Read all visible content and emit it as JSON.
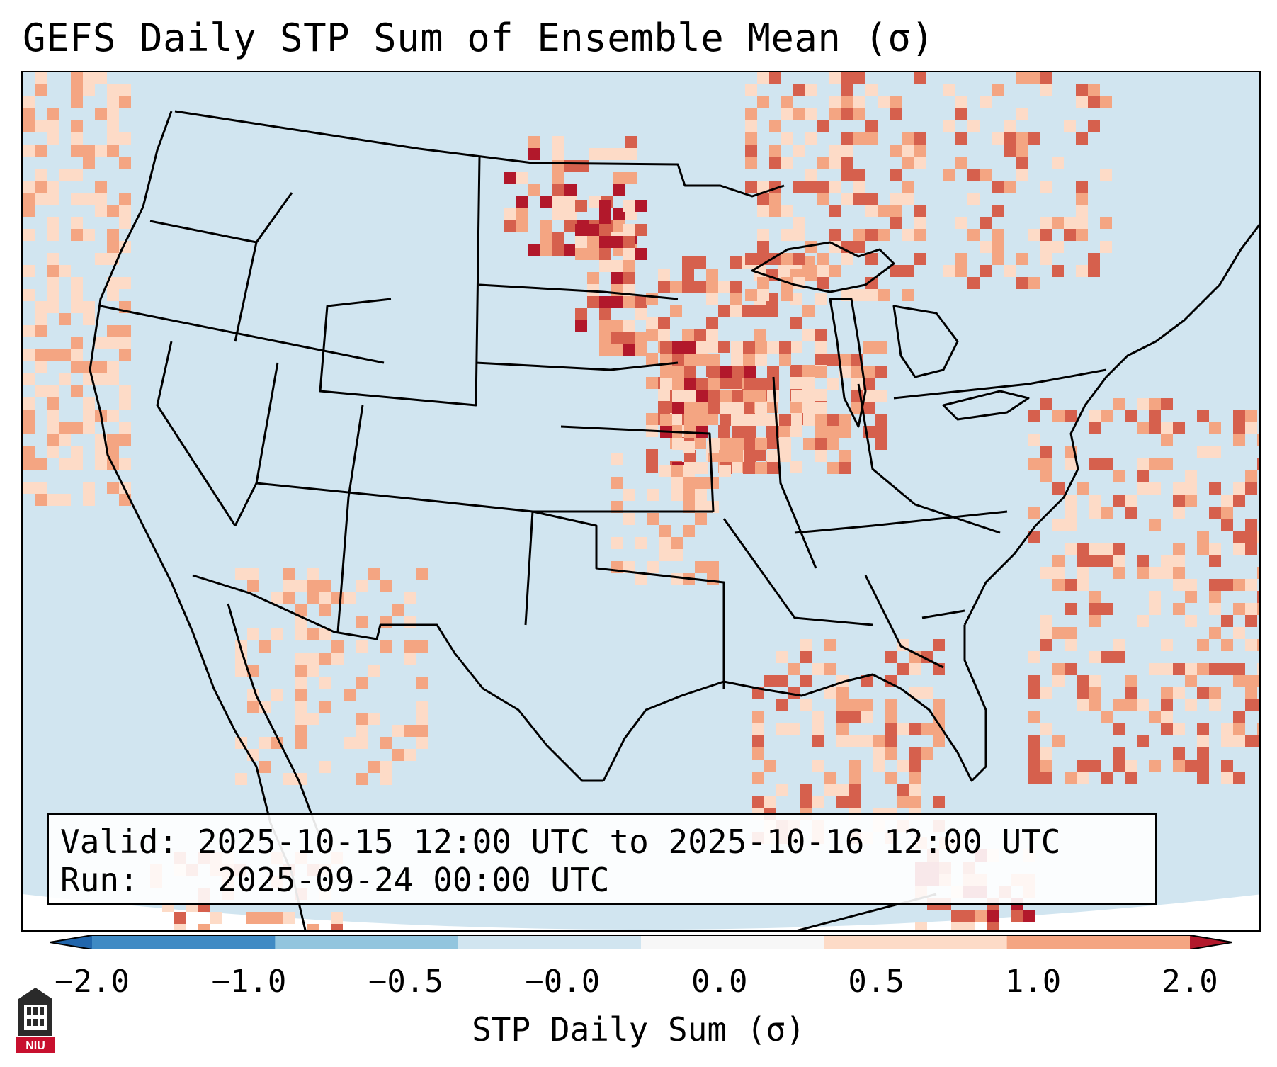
{
  "title": "GEFS Daily STP Sum of Ensemble Mean (σ)",
  "info": {
    "valid_label": "Valid:",
    "valid_value": "2025-10-15 12:00 UTC to 2025-10-16 12:00 UTC",
    "run_label": "Run:",
    "run_value": "2025-09-24 00:00 UTC"
  },
  "colorbar": {
    "label": "STP Daily Sum (σ)",
    "ticks": [
      "−2.0",
      "−1.0",
      "−0.5",
      "−0.0",
      "0.0",
      "0.5",
      "1.0",
      "2.0"
    ],
    "bin_colors": [
      "#3f8ac4",
      "#92c5de",
      "#d1e5f0",
      "#f7f7f7",
      "#fddbc7",
      "#f4a582",
      "#d6604d",
      "#b2182b"
    ],
    "ocean_color": "#d1e5f0"
  },
  "logo": {
    "text": "NIU"
  }
}
